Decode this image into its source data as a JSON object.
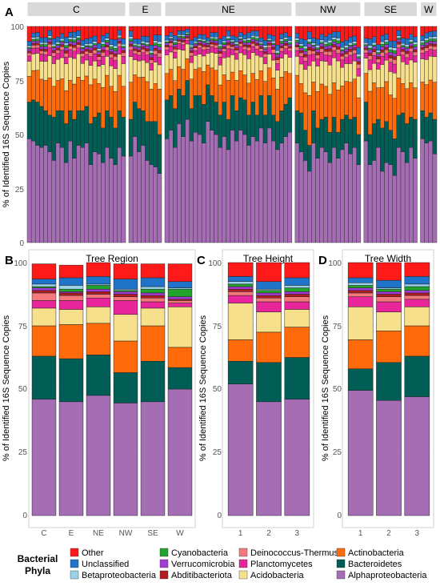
{
  "panels": {
    "A": {
      "letter": "A"
    },
    "B": {
      "letter": "B",
      "title": "Tree Region"
    },
    "C": {
      "letter": "C",
      "title": "Tree Height"
    },
    "D": {
      "letter": "D",
      "title": "Tree Width"
    }
  },
  "ylabel": "% of Identified 16S Sequence Copies",
  "y_ticks": [
    "0",
    "25",
    "50",
    "75",
    "100"
  ],
  "legend": {
    "title_line1": "Bacterial",
    "title_line2": "Phyla",
    "items": [
      {
        "label": "Other",
        "color": "#ff1a1a"
      },
      {
        "label": "Unclassified",
        "color": "#1f73c9"
      },
      {
        "label": "Betaproteobacteria",
        "color": "#9ad3e8"
      },
      {
        "label": "Cyanobacteria",
        "color": "#22a32b"
      },
      {
        "label": "Verrucomicrobia",
        "color": "#a23bd6"
      },
      {
        "label": "Abditibacteriota",
        "color": "#b01c22"
      },
      {
        "label": "Deinococcus-Thermus",
        "color": "#f5797a"
      },
      {
        "label": "Planctomycetes",
        "color": "#e8259a"
      },
      {
        "label": "Acidobacteria",
        "color": "#f7e08c"
      },
      {
        "label": "Actinobacteria",
        "color": "#ff6a0a"
      },
      {
        "label": "Bacteroidetes",
        "color": "#005e56"
      },
      {
        "label": "Alphaproteobacteria",
        "color": "#a56eb4"
      }
    ]
  },
  "chart_data": [
    {
      "panel": "A",
      "type": "bar",
      "stacked": true,
      "facets": [
        {
          "label": "C",
          "alpha": [
            48,
            47,
            45,
            44,
            45,
            42,
            38,
            46,
            44,
            37,
            47,
            39,
            45,
            44,
            46,
            36,
            42,
            41,
            37,
            44,
            39,
            36,
            44,
            40
          ],
          "bact": [
            17,
            19,
            20,
            19,
            16,
            17,
            20,
            15,
            17,
            18,
            14,
            18,
            16,
            17,
            17,
            19,
            16,
            19,
            16,
            17,
            19,
            17,
            17,
            18
          ]
        },
        {
          "label": "E",
          "alpha": [
            40,
            49,
            42,
            45,
            38,
            36,
            35,
            32
          ],
          "bact": [
            17,
            16,
            20,
            16,
            18,
            20,
            21,
            18
          ]
        },
        {
          "label": "NE",
          "alpha": [
            48,
            52,
            44,
            55,
            49,
            57,
            47,
            51,
            50,
            46,
            56,
            52,
            50,
            44,
            49,
            43,
            52,
            47,
            52,
            50,
            45,
            49,
            47,
            53,
            46,
            53,
            47,
            43,
            46,
            49,
            51
          ],
          "bact": [
            18,
            16,
            18,
            16,
            19,
            18,
            15,
            17,
            18,
            18,
            17,
            16,
            15,
            15,
            16,
            14,
            16,
            14,
            15,
            16,
            14,
            16,
            12,
            15,
            13,
            15,
            12,
            13,
            15,
            15,
            16
          ]
        },
        {
          "label": "NW",
          "alpha": [
            46,
            42,
            38,
            33,
            46,
            39,
            44,
            42,
            37,
            44,
            39,
            43,
            46,
            41,
            44,
            36
          ],
          "bact": [
            15,
            18,
            14,
            12,
            15,
            14,
            13,
            16,
            14,
            14,
            12,
            14,
            13,
            16,
            14,
            14
          ]
        },
        {
          "label": "SE",
          "alpha": [
            47,
            36,
            38,
            44,
            33,
            37,
            36,
            31,
            44,
            42,
            37,
            44,
            39
          ],
          "bact": [
            18,
            14,
            17,
            13,
            20,
            19,
            16,
            17,
            15,
            18,
            18,
            14,
            18
          ]
        },
        {
          "label": "W",
          "alpha": [
            48,
            46,
            47,
            41
          ],
          "bact": [
            13,
            12,
            13,
            16
          ]
        }
      ],
      "stack_order_bottom_to_top": [
        "Alphaproteobacteria",
        "Bacteroidetes",
        "Actinobacteria",
        "Acidobacteria",
        "Planctomycetes",
        "Deinococcus-Thermus",
        "Abditibacteriota",
        "Verrucomicrobia",
        "Cyanobacteria",
        "Betaproteobacteria",
        "Unclassified",
        "Other"
      ],
      "ylim": [
        0,
        100
      ]
    },
    {
      "panel": "B",
      "type": "bar",
      "stacked": true,
      "categories": [
        "C",
        "E",
        "NE",
        "NW",
        "SE",
        "W"
      ],
      "series": [
        {
          "name": "Alphaproteobacteria",
          "values": [
            46,
            45,
            47.5,
            44.5,
            45,
            50
          ]
        },
        {
          "name": "Bacteroidetes",
          "values": [
            17,
            17,
            16,
            12,
            16,
            8.5
          ]
        },
        {
          "name": "Actinobacteria",
          "values": [
            12,
            13.5,
            12.5,
            12.5,
            14,
            8
          ]
        },
        {
          "name": "Acidobacteria",
          "values": [
            7,
            6,
            6.5,
            10.5,
            7,
            16
          ]
        },
        {
          "name": "Planctomycetes",
          "values": [
            3,
            3.5,
            3.5,
            5.5,
            2.5,
            1.5
          ]
        },
        {
          "name": "Deinococcus-Thermus",
          "values": [
            3,
            2,
            1.5,
            1.5,
            1.5,
            1
          ]
        },
        {
          "name": "Abditibacteriota",
          "values": [
            1,
            1,
            1,
            1,
            1,
            0.5
          ]
        },
        {
          "name": "Verrucomicrobia",
          "values": [
            1,
            0.5,
            1,
            1,
            1,
            1
          ]
        },
        {
          "name": "Cyanobacteria",
          "values": [
            0.5,
            1,
            1.5,
            0.5,
            1.5,
            3
          ]
        },
        {
          "name": "Betaproteobacteria",
          "values": [
            1,
            1.5,
            0.5,
            0.5,
            1,
            0.5
          ]
        },
        {
          "name": "Unclassified",
          "values": [
            2,
            3,
            3,
            4,
            3.5,
            2.5
          ]
        },
        {
          "name": "Other",
          "values": [
            6,
            5,
            5.5,
            6,
            5.5,
            7
          ]
        }
      ],
      "title": "Tree Region",
      "ylim": [
        0,
        100
      ]
    },
    {
      "panel": "C",
      "type": "bar",
      "stacked": true,
      "categories": [
        "1",
        "2",
        "3"
      ],
      "series": [
        {
          "name": "Alphaproteobacteria",
          "values": [
            52,
            45,
            46
          ]
        },
        {
          "name": "Bacteroidetes",
          "values": [
            9,
            15.5,
            16.5
          ]
        },
        {
          "name": "Actinobacteria",
          "values": [
            8.5,
            12,
            12
          ]
        },
        {
          "name": "Acidobacteria",
          "values": [
            14.5,
            8,
            7
          ]
        },
        {
          "name": "Planctomycetes",
          "values": [
            3,
            4,
            3
          ]
        },
        {
          "name": "Deinococcus-Thermus",
          "values": [
            1.5,
            1.5,
            2
          ]
        },
        {
          "name": "Abditibacteriota",
          "values": [
            1,
            1,
            1
          ]
        },
        {
          "name": "Verrucomicrobia",
          "values": [
            1,
            1,
            1
          ]
        },
        {
          "name": "Cyanobacteria",
          "values": [
            1,
            1,
            1.5
          ]
        },
        {
          "name": "Betaproteobacteria",
          "values": [
            1,
            0.5,
            1
          ]
        },
        {
          "name": "Unclassified",
          "values": [
            2,
            3,
            3
          ]
        },
        {
          "name": "Other",
          "values": [
            5.5,
            7.5,
            6
          ]
        }
      ],
      "title": "Tree Height",
      "ylim": [
        0,
        100
      ]
    },
    {
      "panel": "D",
      "type": "bar",
      "stacked": true,
      "categories": [
        "1",
        "2",
        "3"
      ],
      "series": [
        {
          "name": "Alphaproteobacteria",
          "values": [
            49.5,
            45.5,
            47
          ]
        },
        {
          "name": "Bacteroidetes",
          "values": [
            8.5,
            15,
            16
          ]
        },
        {
          "name": "Actinobacteria",
          "values": [
            11.5,
            12.5,
            12
          ]
        },
        {
          "name": "Acidobacteria",
          "values": [
            13,
            7.5,
            7.5
          ]
        },
        {
          "name": "Planctomycetes",
          "values": [
            4,
            4,
            3
          ]
        },
        {
          "name": "Deinococcus-Thermus",
          "values": [
            1.5,
            2,
            1.5
          ]
        },
        {
          "name": "Abditibacteriota",
          "values": [
            1,
            1,
            1
          ]
        },
        {
          "name": "Verrucomicrobia",
          "values": [
            1,
            1,
            1
          ]
        },
        {
          "name": "Cyanobacteria",
          "values": [
            1,
            1,
            1.5
          ]
        },
        {
          "name": "Betaproteobacteria",
          "values": [
            1,
            0.5,
            1
          ]
        },
        {
          "name": "Unclassified",
          "values": [
            2,
            3,
            3
          ]
        },
        {
          "name": "Other",
          "values": [
            6,
            7,
            5.5
          ]
        }
      ],
      "title": "Tree Width",
      "ylim": [
        0,
        100
      ]
    }
  ]
}
